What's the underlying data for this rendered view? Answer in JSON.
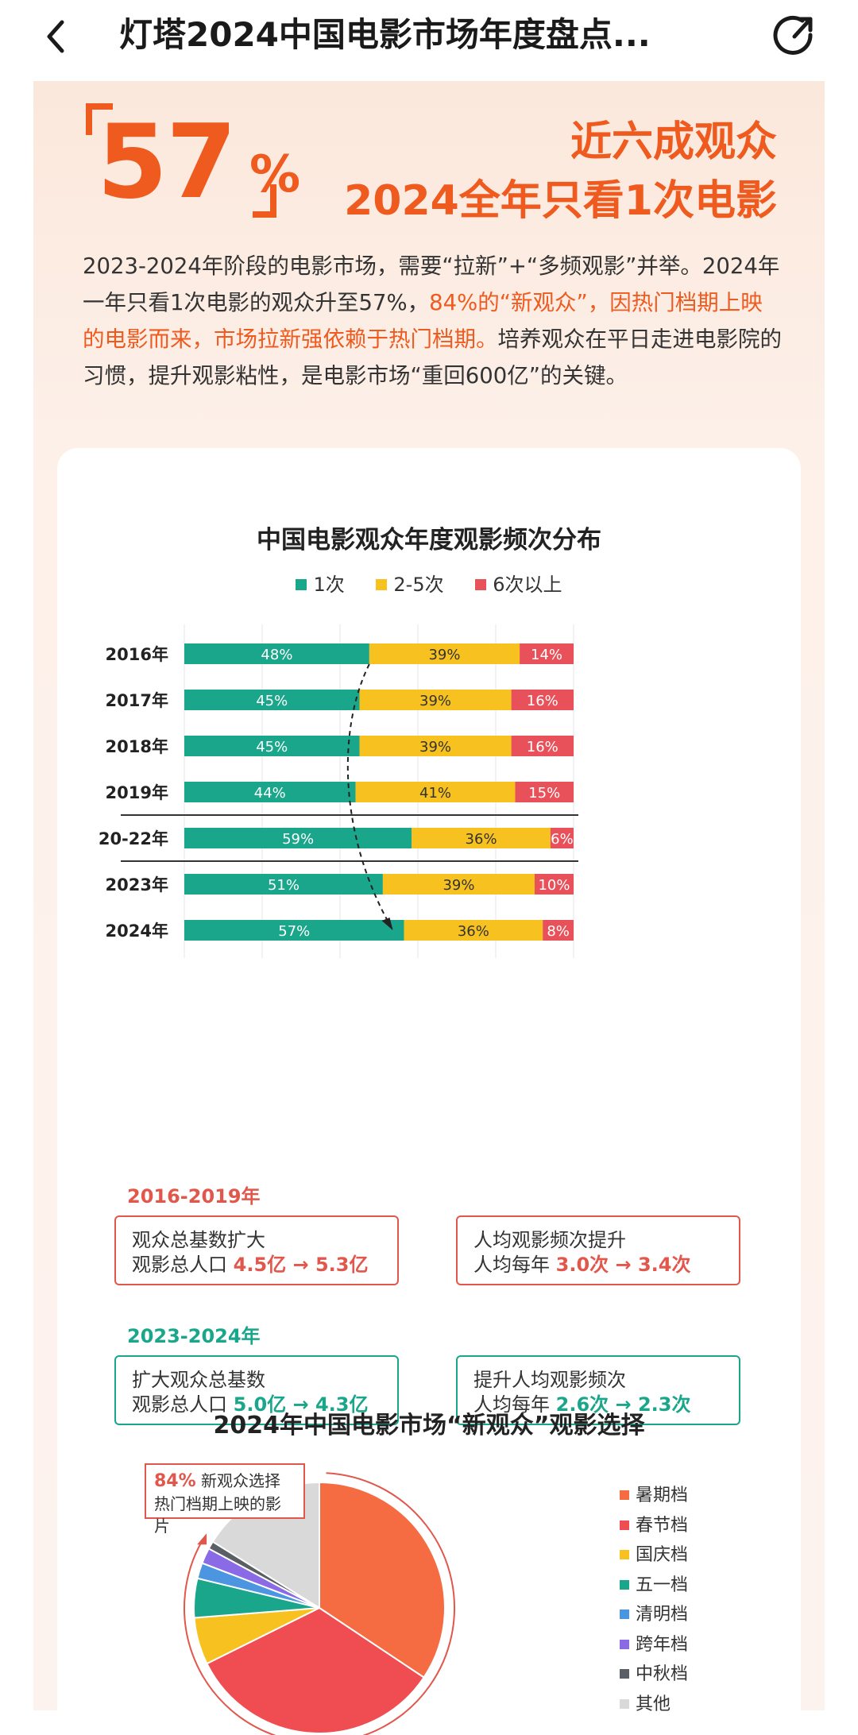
{
  "nav": {
    "title": "灯塔2024中国电影市场年度盘点..."
  },
  "hero": {
    "big_number": "57",
    "percent_sign": "%",
    "headline_line1": "近六成观众",
    "headline_line2": "2024全年只看1次电影"
  },
  "intro": {
    "part1": "2023-2024年阶段的电影市场，需要“拉新”+“多频观影”并举。2024年一年只看1次电影的观众升至57%，",
    "part2_highlight": "84%的“新观众”，因热门档期上映的电影而来，市场拉新强依赖于热门档期。",
    "part3": "培养观众在平日走进电影院的习惯，提升观影粘性，是电影市场“重回600亿”的关键。"
  },
  "chart_data": [
    {
      "type": "bar",
      "orientation": "horizontal",
      "stacked": true,
      "title": "中国电影观众年度观影频次分布",
      "categories": [
        "2016年",
        "2017年",
        "2018年",
        "2019年",
        "20-22年",
        "2023年",
        "2024年"
      ],
      "series": [
        {
          "name": "1次",
          "color": "#1aa68a",
          "values": [
            48,
            45,
            45,
            44,
            59,
            51,
            57
          ]
        },
        {
          "name": "2-5次",
          "color": "#f7c11f",
          "values": [
            39,
            39,
            39,
            41,
            36,
            39,
            36
          ]
        },
        {
          "name": "6次以上",
          "color": "#e9515a",
          "values": [
            14,
            16,
            16,
            15,
            6,
            10,
            8
          ]
        }
      ],
      "value_suffix": "%",
      "legend": "top"
    },
    {
      "type": "pie",
      "title": "2024年中国电影市场“新观众”观影选择",
      "labels": [
        "暑期档",
        "春节档",
        "国庆档",
        "五一档",
        "清明档",
        "跨年档",
        "中秋档",
        "其他"
      ],
      "values": [
        34,
        33,
        6,
        5,
        2,
        2,
        1,
        16
      ],
      "colors": [
        "#f56c42",
        "#f04d52",
        "#f7c11f",
        "#1aa68a",
        "#4c95e0",
        "#8b6ae6",
        "#5a5f66",
        "#d9d9d9"
      ],
      "legend": "right"
    }
  ],
  "period1": {
    "label": "2016-2019年",
    "box1": {
      "line1": "观众总基数扩大",
      "line2_prefix": "观影总人口 ",
      "line2_value": "4.5亿 → 5.3亿"
    },
    "box2": {
      "line1": "人均观影频次提升",
      "line2_prefix": "人均每年 ",
      "line2_value": "3.0次 → 3.4次"
    }
  },
  "period2": {
    "label": "2023-2024年",
    "box1": {
      "line1": "扩大观众总基数",
      "line2_prefix": "观影总人口 ",
      "line2_value": "5.0亿 → 4.3亿"
    },
    "box2": {
      "line1": "提升人均观影频次",
      "line2_prefix": "人均每年 ",
      "line2_value": "2.6次 → 2.3次"
    }
  },
  "callout": {
    "value": "84%",
    "line1_rest": " 新观众选择",
    "line2": "热门档期上映的影片"
  },
  "colors": {
    "accent_orange": "#ef5a1f",
    "teal": "#1aa68a",
    "red": "#e2574c"
  },
  "icons": {
    "back": "chevron-left-icon",
    "share": "share-icon"
  }
}
